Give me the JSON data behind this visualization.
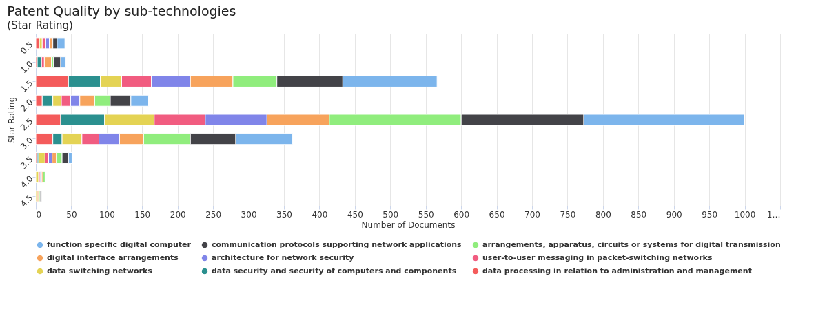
{
  "chart_data": {
    "type": "bar",
    "orientation": "horizontal",
    "stacked": true,
    "title": "Patent Quality by sub-technologies",
    "subtitle": "(Star Rating)",
    "xlabel": "Number of Documents",
    "ylabel": "Star Rating",
    "categories": [
      "0.5",
      "1.0",
      "1.5",
      "2.0",
      "2.5",
      "3.0",
      "3.5",
      "4.0",
      "4.5"
    ],
    "series": [
      {
        "name": "data processing in relation to administration and management",
        "color": "#f45b5b",
        "values": [
          5,
          2,
          46,
          9,
          35,
          24,
          2,
          0,
          0
        ]
      },
      {
        "name": "data security and security of computers and components",
        "color": "#2b908f",
        "values": [
          null,
          6,
          45,
          15,
          62,
          13,
          2,
          0,
          0
        ]
      },
      {
        "name": "data switching networks",
        "color": "#e4d354",
        "values": [
          4,
          null,
          30,
          12,
          70,
          28,
          9,
          4,
          2
        ]
      },
      {
        "name": "user-to-user messaging in packet-switching networks",
        "color": "#f15c80",
        "values": [
          5,
          4,
          42,
          13,
          72,
          24,
          5,
          2,
          null
        ]
      },
      {
        "name": "architecture for network security",
        "color": "#8085e9",
        "values": [
          5,
          null,
          55,
          13,
          87,
          29,
          5,
          2,
          0
        ]
      },
      {
        "name": "digital interface arrangements",
        "color": "#f7a35c",
        "values": [
          5,
          10,
          60,
          21,
          88,
          34,
          6,
          2,
          2
        ]
      },
      {
        "name": "arrangements, apparatus, circuits or systems for digital transmission",
        "color": "#90ed7d",
        "values": [
          0,
          3,
          62,
          22,
          186,
          66,
          8,
          3,
          2
        ]
      },
      {
        "name": "communication protocols supporting network applications",
        "color": "#434348",
        "values": [
          6,
          10,
          93,
          29,
          173,
          64,
          9,
          0,
          2
        ]
      },
      {
        "name": "function specific digital computer",
        "color": "#7cb5ec",
        "values": [
          11,
          7,
          133,
          25,
          226,
          80,
          5,
          0,
          0
        ]
      }
    ],
    "xlim": [
      0,
      1050
    ],
    "xticks": [
      0,
      50,
      100,
      150,
      200,
      250,
      300,
      350,
      400,
      450,
      500,
      550,
      600,
      650,
      700,
      750,
      800,
      850,
      900,
      950,
      1000,
      {
        "value": 1050,
        "label": "1…"
      }
    ],
    "grid": "x",
    "legend": "bottom"
  }
}
